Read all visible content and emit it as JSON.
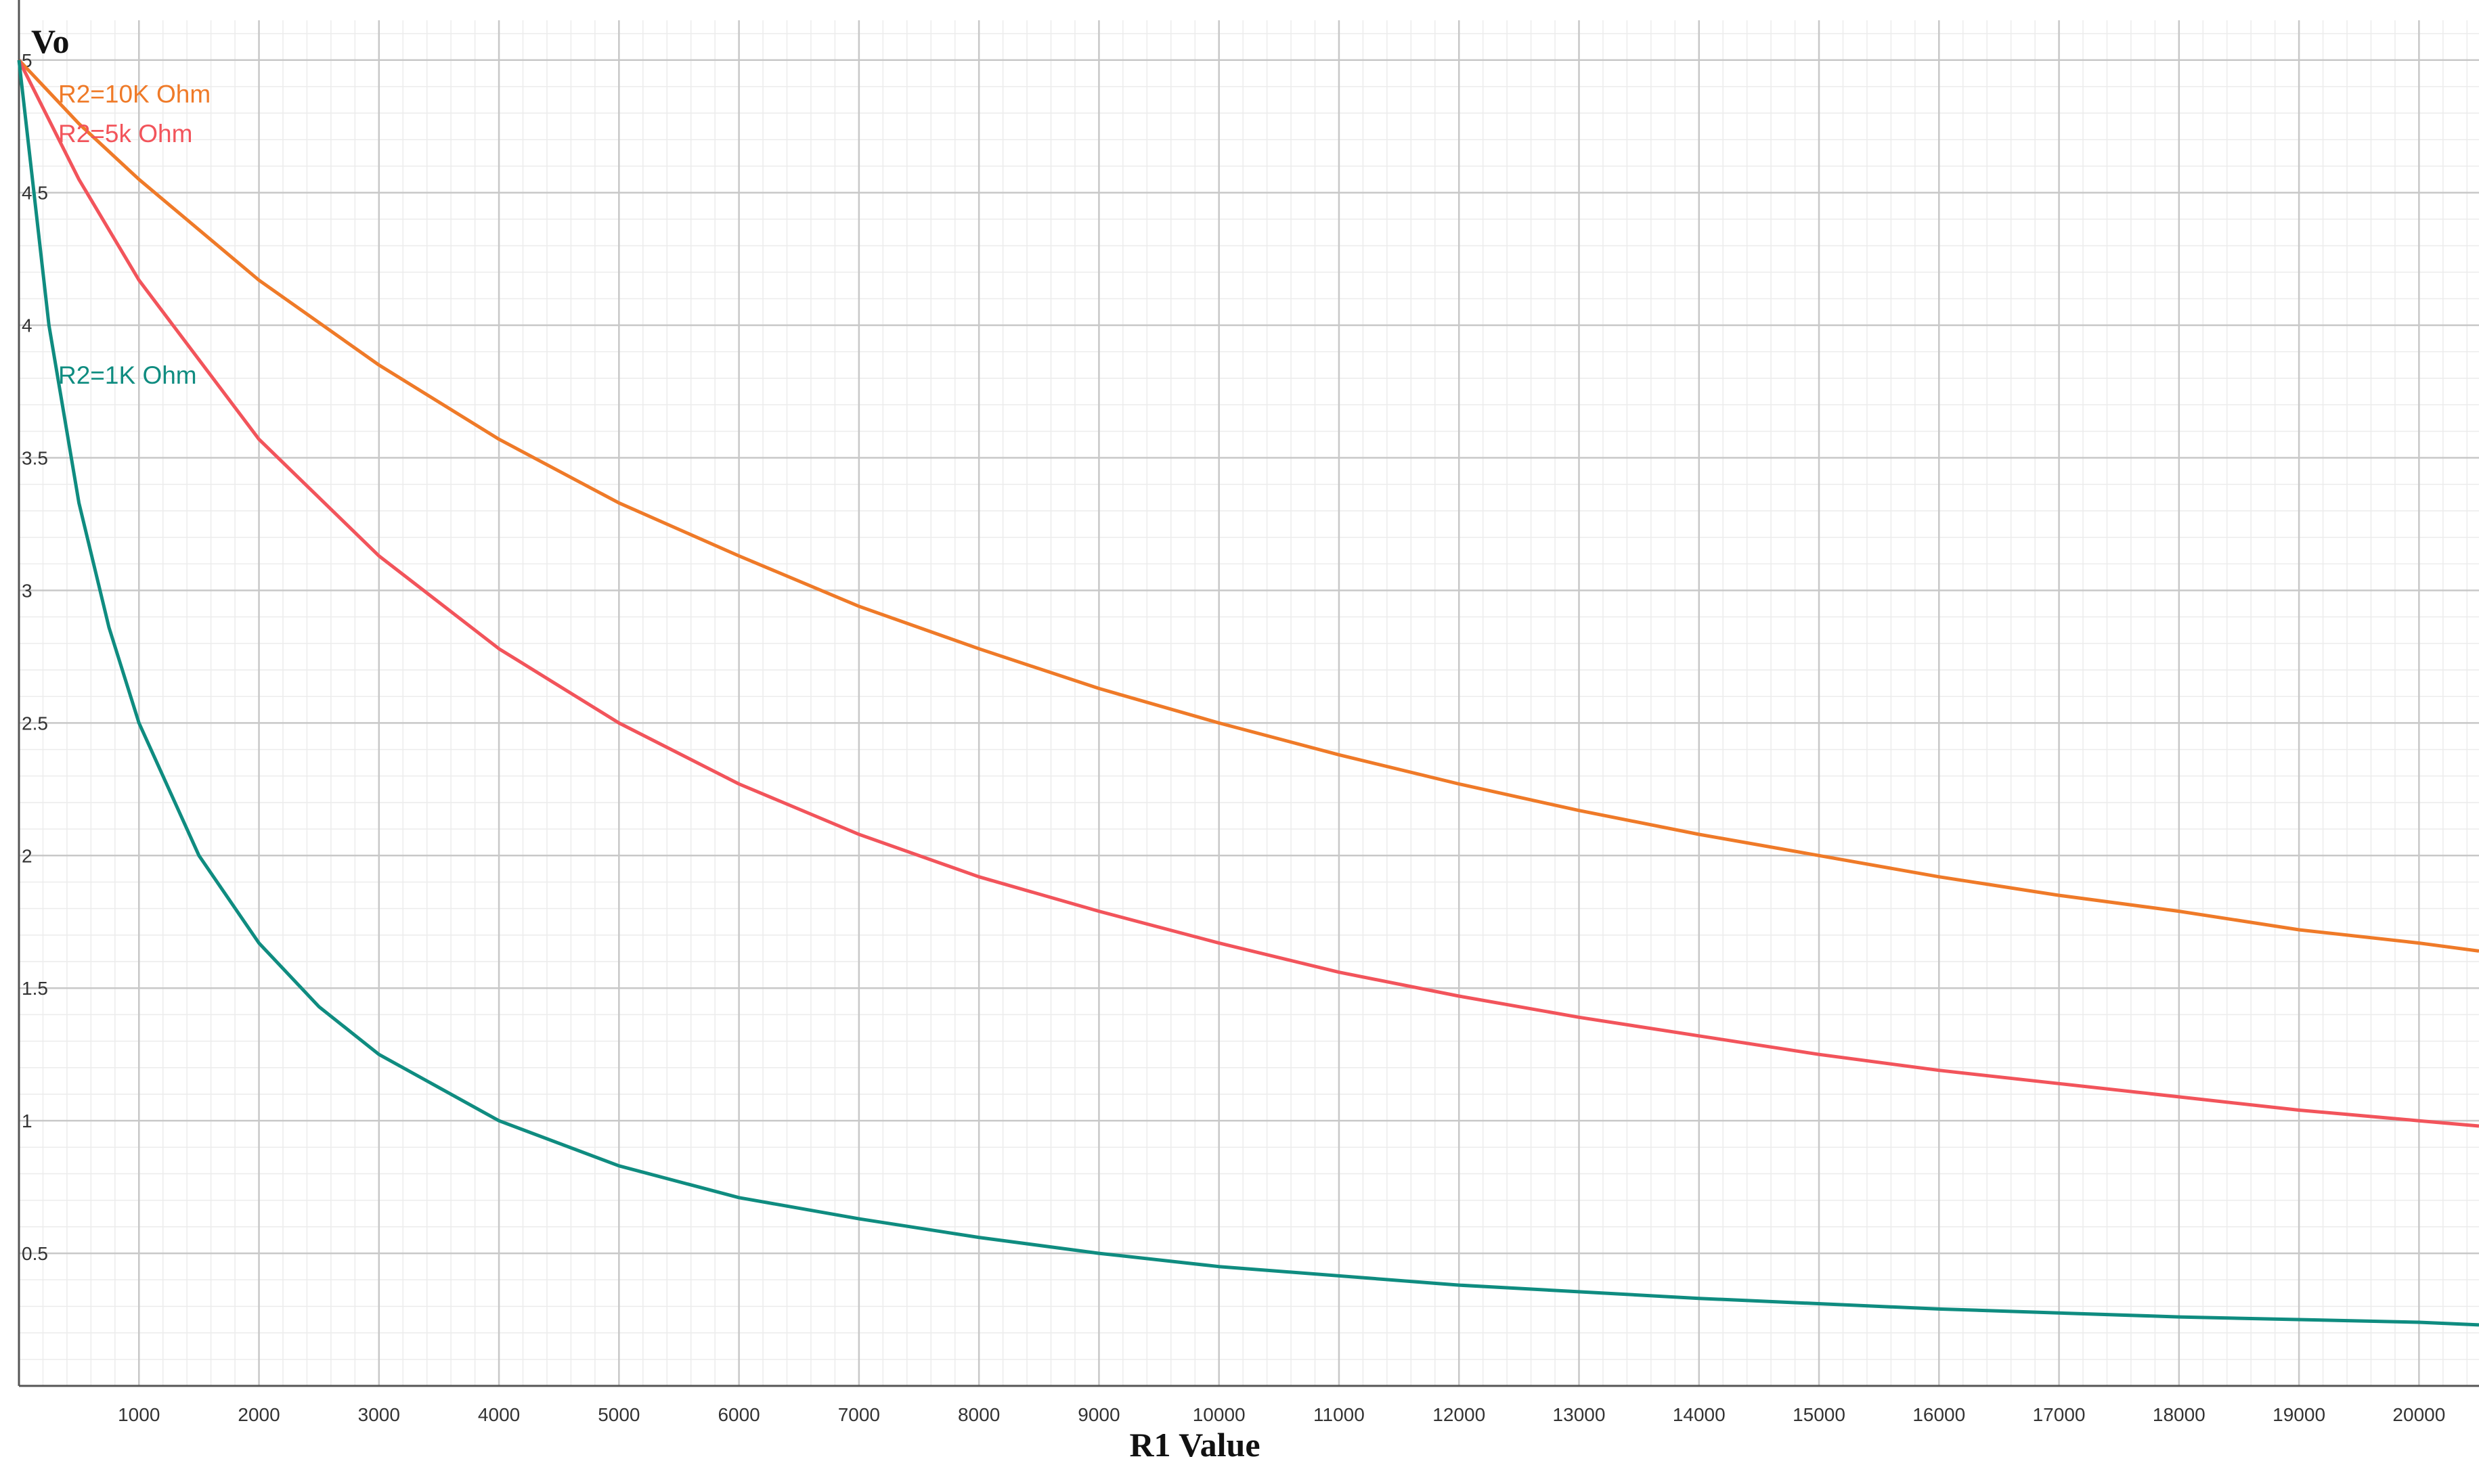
{
  "chart_data": {
    "type": "line",
    "title": "",
    "xlabel": "R1 Value",
    "ylabel": "Vo",
    "xlim": [
      0,
      20500
    ],
    "ylim": [
      0,
      5.15
    ],
    "x_ticks": [
      1000,
      2000,
      3000,
      4000,
      5000,
      6000,
      7000,
      8000,
      9000,
      10000,
      11000,
      12000,
      13000,
      14000,
      15000,
      16000,
      17000,
      18000,
      19000,
      20000
    ],
    "y_ticks": [
      0.5,
      1,
      1.5,
      2,
      2.5,
      3,
      3.5,
      4,
      4.5,
      5
    ],
    "x_tick_labels": [
      "1000",
      "2000",
      "3000",
      "4000",
      "5000",
      "6000",
      "7000",
      "8000",
      "9000",
      "10000",
      "11000",
      "12000",
      "13000",
      "14000",
      "15000",
      "16000",
      "17000",
      "18000",
      "19000",
      "20000"
    ],
    "y_tick_labels": [
      "0.5",
      "1",
      "1.5",
      "2",
      "2.5",
      "3",
      "3.5",
      "4",
      "4.5",
      "5"
    ],
    "grid": true,
    "legend": "none",
    "series": [
      {
        "name": "R2=10K Ohm",
        "color": "#ef7a28",
        "x": [
          0,
          500,
          1000,
          2000,
          3000,
          4000,
          5000,
          6000,
          7000,
          8000,
          9000,
          10000,
          11000,
          12000,
          13000,
          14000,
          15000,
          16000,
          17000,
          18000,
          19000,
          20000,
          20500
        ],
        "y": [
          5,
          4.76,
          4.55,
          4.17,
          3.85,
          3.57,
          3.33,
          3.13,
          2.94,
          2.78,
          2.63,
          2.5,
          2.38,
          2.27,
          2.17,
          2.08,
          2.0,
          1.92,
          1.85,
          1.79,
          1.72,
          1.67,
          1.64
        ]
      },
      {
        "name": "R2=5k Ohm",
        "color": "#f2545b",
        "x": [
          0,
          500,
          1000,
          2000,
          3000,
          4000,
          5000,
          6000,
          7000,
          8000,
          9000,
          10000,
          11000,
          12000,
          13000,
          14000,
          15000,
          16000,
          17000,
          18000,
          19000,
          20000,
          20500
        ],
        "y": [
          5,
          4.55,
          4.17,
          3.57,
          3.13,
          2.78,
          2.5,
          2.27,
          2.08,
          1.92,
          1.79,
          1.67,
          1.56,
          1.47,
          1.39,
          1.32,
          1.25,
          1.19,
          1.14,
          1.09,
          1.04,
          1.0,
          0.98
        ]
      },
      {
        "name": "R2=1K Ohm",
        "color": "#0f8c80",
        "x": [
          0,
          250,
          500,
          750,
          1000,
          1500,
          2000,
          2500,
          3000,
          4000,
          5000,
          6000,
          7000,
          8000,
          9000,
          10000,
          12000,
          14000,
          16000,
          18000,
          20000,
          20500
        ],
        "y": [
          5,
          4.0,
          3.33,
          2.86,
          2.5,
          2.0,
          1.67,
          1.43,
          1.25,
          1.0,
          0.83,
          0.71,
          0.63,
          0.56,
          0.5,
          0.45,
          0.38,
          0.33,
          0.29,
          0.26,
          0.24,
          0.23
        ]
      }
    ]
  }
}
